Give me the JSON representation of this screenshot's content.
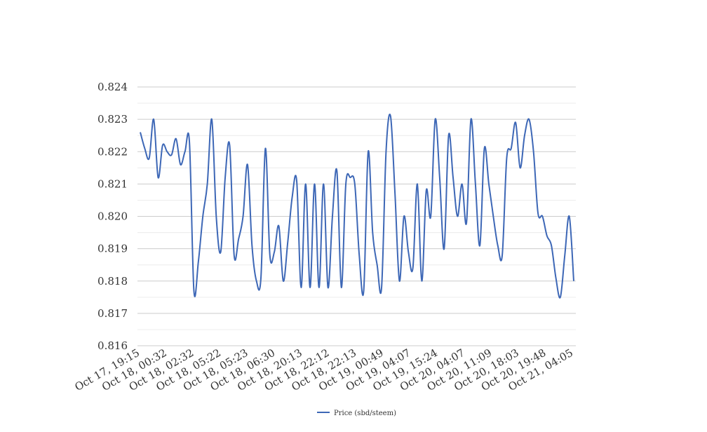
{
  "chart_data": {
    "type": "line",
    "title": "",
    "xlabel": "",
    "ylabel": "",
    "ylim": [
      0.816,
      0.824
    ],
    "y_ticks": [
      "0.816",
      "0.817",
      "0.818",
      "0.819",
      "0.820",
      "0.821",
      "0.822",
      "0.823",
      "0.824"
    ],
    "x_tick_labels": [
      "Oct 17, 19:15",
      "Oct 18, 00:32",
      "Oct 18, 02:32",
      "Oct 18, 05:22",
      "Oct 18, 05:23",
      "Oct 18, 06:30",
      "Oct 18, 20:13",
      "Oct 18, 22:12",
      "Oct 18, 22:13",
      "Oct 19, 00:49",
      "Oct 19, 04:07",
      "Oct 19, 15:24",
      "Oct 20, 04:07",
      "Oct 20, 11:09",
      "Oct 20, 18:03",
      "Oct 20, 19:48",
      "Oct 21, 04:05"
    ],
    "grid": true,
    "legend_position": "bottom",
    "series": [
      {
        "name": "Price (sbd/steem)",
        "color": "#3d67b6",
        "values": [
          0.8226,
          0.8221,
          0.8218,
          0.823,
          0.8212,
          0.8222,
          0.822,
          0.8219,
          0.8224,
          0.8216,
          0.822,
          0.8223,
          0.8177,
          0.8186,
          0.82,
          0.821,
          0.823,
          0.82,
          0.8189,
          0.8212,
          0.8222,
          0.8188,
          0.8193,
          0.82,
          0.8216,
          0.8191,
          0.818,
          0.8181,
          0.8221,
          0.8188,
          0.8189,
          0.8197,
          0.818,
          0.8192,
          0.8206,
          0.8211,
          0.8178,
          0.821,
          0.8178,
          0.821,
          0.8178,
          0.821,
          0.8178,
          0.82,
          0.8214,
          0.8178,
          0.821,
          0.8212,
          0.821,
          0.8188,
          0.8177,
          0.822,
          0.8195,
          0.8185,
          0.8178,
          0.822,
          0.8231,
          0.8207,
          0.818,
          0.82,
          0.8189,
          0.8184,
          0.821,
          0.818,
          0.8208,
          0.82,
          0.823,
          0.8212,
          0.819,
          0.8225,
          0.8212,
          0.82,
          0.821,
          0.8198,
          0.823,
          0.821,
          0.8191,
          0.8221,
          0.821,
          0.82,
          0.8191,
          0.8188,
          0.8218,
          0.8221,
          0.8229,
          0.8215,
          0.8225,
          0.823,
          0.822,
          0.8201,
          0.82,
          0.8194,
          0.8191,
          0.8181,
          0.8175,
          0.8188,
          0.82,
          0.818
        ]
      }
    ]
  }
}
